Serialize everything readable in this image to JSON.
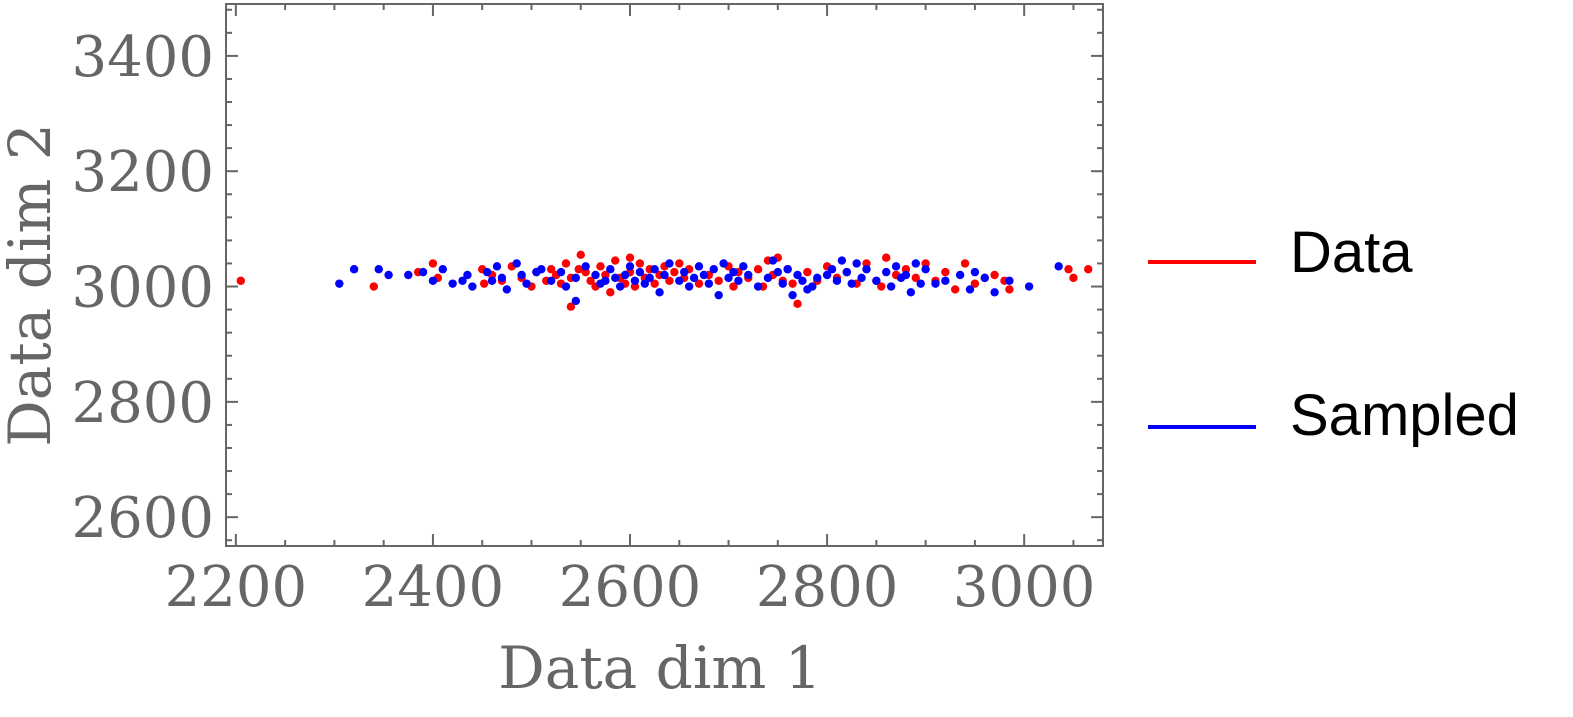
{
  "chart_data": {
    "type": "scatter",
    "title": "",
    "xlabel": "Data dim 1",
    "ylabel": "Data dim 2",
    "xlim": [
      2190,
      3080
    ],
    "ylim": [
      2550,
      3490
    ],
    "xticks": [
      2200,
      2400,
      2600,
      2800,
      3000
    ],
    "yticks": [
      2600,
      2800,
      3000,
      3200,
      3400
    ],
    "xtick_labels": [
      "2200",
      "2400",
      "2600",
      "2800",
      "3000"
    ],
    "ytick_labels": [
      "2600",
      "2800",
      "3000",
      "3200",
      "3400"
    ],
    "legend_placement": "right",
    "series": [
      {
        "name": "Data",
        "color": "#ff0000",
        "x": [
          2205,
          2340,
          2385,
          2400,
          2405,
          2450,
          2452,
          2460,
          2470,
          2480,
          2490,
          2500,
          2505,
          2515,
          2520,
          2525,
          2530,
          2535,
          2540,
          2540,
          2548,
          2550,
          2555,
          2560,
          2565,
          2570,
          2575,
          2580,
          2585,
          2590,
          2595,
          2600,
          2600,
          2605,
          2610,
          2615,
          2620,
          2625,
          2630,
          2635,
          2640,
          2645,
          2650,
          2655,
          2660,
          2670,
          2680,
          2690,
          2700,
          2705,
          2710,
          2720,
          2730,
          2735,
          2740,
          2745,
          2750,
          2755,
          2760,
          2765,
          2770,
          2780,
          2790,
          2800,
          2810,
          2820,
          2830,
          2840,
          2850,
          2855,
          2860,
          2870,
          2880,
          2890,
          2900,
          2910,
          2920,
          2930,
          2940,
          2950,
          2960,
          2970,
          2980,
          2985,
          3045,
          3050,
          3065
        ],
        "y": [
          3010,
          3000,
          3025,
          3040,
          3015,
          3030,
          3005,
          3020,
          3010,
          3035,
          3015,
          3000,
          3025,
          3010,
          3030,
          3020,
          3005,
          3040,
          2965,
          3015,
          3030,
          3055,
          3025,
          3010,
          3000,
          3035,
          3020,
          2990,
          3045,
          3015,
          3005,
          3050,
          3025,
          3000,
          3040,
          3015,
          3030,
          3005,
          3020,
          3035,
          3010,
          3025,
          3040,
          3015,
          3030,
          3005,
          3020,
          3010,
          3035,
          3000,
          3025,
          3015,
          3030,
          3000,
          3045,
          3020,
          3050,
          3010,
          3030,
          3005,
          2970,
          3025,
          3010,
          3035,
          3015,
          3025,
          3005,
          3040,
          3010,
          3000,
          3050,
          3020,
          3030,
          3015,
          3040,
          3010,
          3025,
          2995,
          3040,
          3005,
          3015,
          3020,
          3010,
          2995,
          3030,
          3015,
          3030
        ]
      },
      {
        "name": "Sampled",
        "color": "#0000ff",
        "x": [
          2305,
          2320,
          2345,
          2355,
          2375,
          2390,
          2400,
          2410,
          2420,
          2430,
          2435,
          2440,
          2455,
          2460,
          2465,
          2470,
          2475,
          2485,
          2490,
          2495,
          2505,
          2510,
          2520,
          2530,
          2535,
          2545,
          2545,
          2555,
          2565,
          2570,
          2575,
          2580,
          2585,
          2590,
          2595,
          2600,
          2605,
          2610,
          2615,
          2620,
          2625,
          2630,
          2635,
          2640,
          2650,
          2655,
          2660,
          2665,
          2670,
          2675,
          2680,
          2685,
          2690,
          2695,
          2700,
          2705,
          2710,
          2715,
          2720,
          2730,
          2740,
          2745,
          2750,
          2755,
          2760,
          2765,
          2770,
          2775,
          2780,
          2785,
          2790,
          2800,
          2805,
          2810,
          2815,
          2820,
          2825,
          2830,
          2835,
          2840,
          2850,
          2860,
          2865,
          2870,
          2875,
          2880,
          2885,
          2890,
          2895,
          2900,
          2910,
          2920,
          2935,
          2945,
          2950,
          2960,
          2970,
          2985,
          3005,
          3035
        ],
        "y": [
          3005,
          3030,
          3030,
          3020,
          3020,
          3025,
          3010,
          3030,
          3005,
          3010,
          3020,
          3000,
          3025,
          3010,
          3035,
          3015,
          2995,
          3040,
          3020,
          3005,
          3025,
          3030,
          3010,
          3025,
          3000,
          2975,
          3015,
          3035,
          3020,
          3005,
          3010,
          3030,
          3015,
          3000,
          3020,
          3035,
          3010,
          3025,
          3005,
          3015,
          3030,
          2990,
          3020,
          3040,
          3010,
          3025,
          3000,
          3015,
          3035,
          3020,
          3005,
          3030,
          2985,
          3040,
          3015,
          3025,
          3010,
          3035,
          3020,
          3000,
          3015,
          3045,
          3025,
          3005,
          3030,
          2985,
          3020,
          3010,
          2995,
          3000,
          3015,
          3020,
          3030,
          3010,
          3045,
          3025,
          3005,
          3040,
          3015,
          3030,
          3010,
          3025,
          3000,
          3035,
          3015,
          3020,
          2990,
          3040,
          3005,
          3030,
          3005,
          3010,
          3020,
          2995,
          3025,
          3015,
          2990,
          3010,
          3000,
          3035
        ]
      }
    ]
  }
}
